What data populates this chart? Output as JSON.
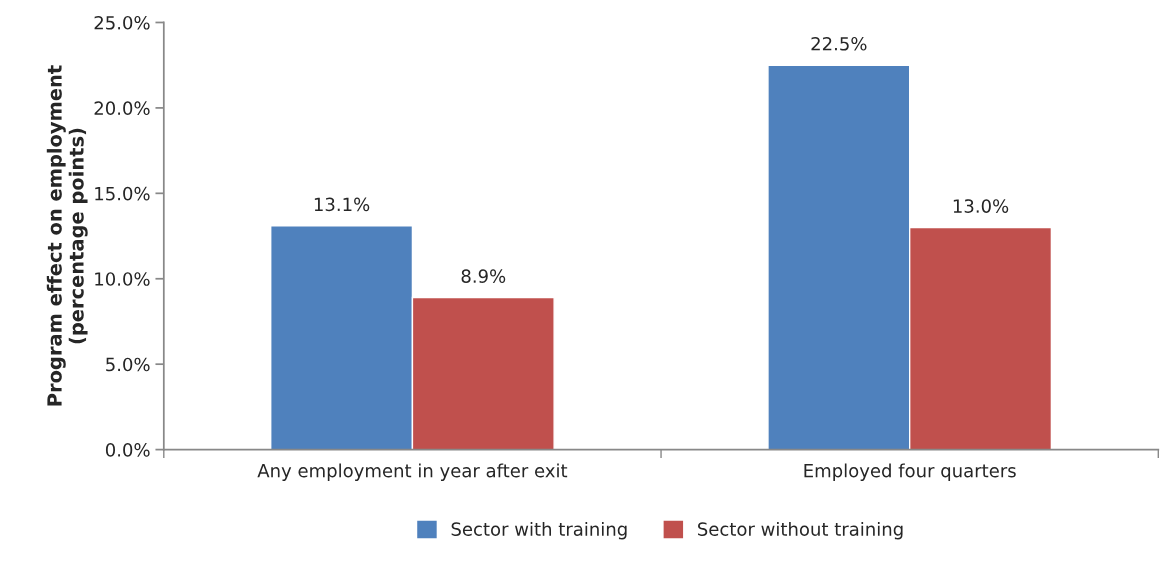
{
  "chart_data": {
    "type": "bar",
    "ylabel": "Program effect on employment\n(percentage points)",
    "categories": [
      "Any employment in year after exit",
      "Employed four quarters"
    ],
    "series": [
      {
        "name": "Sector with training",
        "color": "#4f81bd",
        "values": [
          13.1,
          22.5
        ],
        "value_labels": [
          "13.1%",
          "22.5%"
        ]
      },
      {
        "name": "Sector without training",
        "color": "#c0504d",
        "values": [
          8.9,
          13.0
        ],
        "value_labels": [
          "8.9%",
          "13.0%"
        ]
      }
    ],
    "ylim": [
      0,
      25
    ],
    "yticks": [
      {
        "value": 0,
        "label": "0.0%"
      },
      {
        "value": 5,
        "label": "5.0%"
      },
      {
        "value": 10,
        "label": "10.0%"
      },
      {
        "value": 15,
        "label": "15.0%"
      },
      {
        "value": 20,
        "label": "20.0%"
      },
      {
        "value": 25,
        "label": "25.0%"
      }
    ],
    "grid": false,
    "legend": "bottom"
  }
}
